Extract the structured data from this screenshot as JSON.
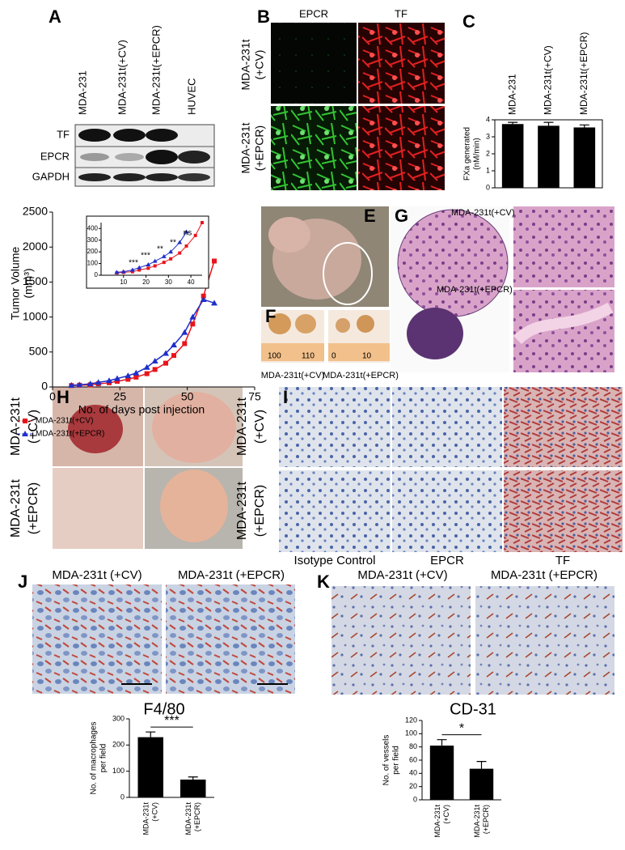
{
  "panels": {
    "A": {
      "label": "A",
      "lanes": [
        "MDA-231",
        "MDA-231t(+CV)",
        "MDA-231t(+EPCR)",
        "HUVEC"
      ],
      "rows": [
        "TF",
        "EPCR",
        "GAPDH"
      ]
    },
    "B": {
      "label": "B",
      "columns": [
        "EPCR",
        "TF"
      ],
      "rows": [
        [
          "MDA-231t",
          "(+CV)"
        ],
        [
          "MDA-231t",
          "(+EPCR)"
        ]
      ]
    },
    "E": {
      "label": "E"
    },
    "F": {
      "label": "F",
      "captions": [
        "MDA-231t(+CV)",
        "MDA-231t(+EPCR)"
      ],
      "ruler": [
        "100",
        "110",
        "0",
        "10"
      ]
    },
    "G": {
      "label": "G",
      "tags": [
        "MDA-231t(+CV)",
        "MDA-231t(+EPCR)"
      ]
    },
    "H": {
      "label": "H",
      "rows": [
        [
          "MDA-231t",
          "(+CV)"
        ],
        [
          "MDA-231t",
          "(+EPCR)"
        ]
      ]
    },
    "I": {
      "label": "I",
      "rows": [
        [
          "MDA-231t",
          "(+CV)"
        ],
        [
          "MDA-231t",
          "(+EPCR)"
        ]
      ],
      "columns": [
        "Isotype Control",
        "EPCR",
        "TF"
      ]
    },
    "J": {
      "label": "J",
      "titles": [
        "MDA-231t (+CV)",
        "MDA-231t (+EPCR)"
      ],
      "stain": "F4/80"
    },
    "K": {
      "label": "K",
      "titles": [
        "MDA-231t (+CV)",
        "MDA-231t (+EPCR)"
      ],
      "stain": "CD-31"
    }
  },
  "chart_data": [
    {
      "type": "bar",
      "label": "C",
      "categories": [
        "MDA-231",
        "MDA-231t(+CV)",
        "MDA-231t(+EPCR)"
      ],
      "values": [
        3.75,
        3.65,
        3.55
      ],
      "errors": [
        0.1,
        0.2,
        0.15
      ],
      "color": "#000000",
      "ylim": [
        0,
        4
      ],
      "yticks": [
        0,
        1,
        2,
        3,
        4
      ],
      "ylabel": [
        "FXa generated",
        "(nM/min)"
      ]
    },
    {
      "type": "line",
      "ylabel": [
        "Tumor Volume",
        "(mm³)"
      ],
      "xlabel": "No. of days post injection",
      "x": [
        7,
        10,
        14,
        17,
        21,
        24,
        28,
        31,
        35,
        38,
        42,
        45,
        49,
        52,
        56,
        60
      ],
      "series": [
        {
          "name": "MDA-231t(+CV)",
          "color": "#e8141b",
          "values": [
            20,
            25,
            30,
            45,
            60,
            80,
            110,
            140,
            190,
            250,
            340,
            450,
            620,
            900,
            1300,
            1800
          ]
        },
        {
          "name": "MDA-231t(+EPCR)",
          "color": "#1f2fc8",
          "values": [
            25,
            30,
            45,
            65,
            90,
            120,
            160,
            200,
            280,
            370,
            480,
            600,
            780,
            1000,
            1250,
            1200
          ]
        }
      ],
      "xlim": [
        0,
        75
      ],
      "xticks": [
        0,
        25,
        50,
        75
      ],
      "ylim": [
        0,
        2500
      ],
      "yticks": [
        0,
        500,
        1000,
        1500,
        2000,
        2500
      ],
      "inset": {
        "xlim": [
          0,
          45
        ],
        "xticks": [
          10,
          20,
          30,
          40
        ],
        "ylim": [
          0,
          450
        ],
        "yticks": [
          0,
          100,
          200,
          300,
          400
        ],
        "annotations": [
          "***",
          "***",
          "**",
          "**",
          "ns"
        ]
      }
    },
    {
      "type": "bar",
      "categories": [
        [
          "MDA-231t",
          "(+CV)"
        ],
        [
          "MDA-231t",
          "(+EPCR)"
        ]
      ],
      "values": [
        230,
        68
      ],
      "errors": [
        20,
        10
      ],
      "color": "#000000",
      "ylim": [
        0,
        300
      ],
      "yticks": [
        0,
        100,
        200,
        300
      ],
      "ylabel": [
        "No. of macrophages",
        "per field"
      ],
      "significance": "***"
    },
    {
      "type": "bar",
      "categories": [
        [
          "MDA-231t",
          "(+CV)"
        ],
        [
          "MDA-231t",
          "(+EPCR)"
        ]
      ],
      "values": [
        82,
        47
      ],
      "errors": [
        9,
        11
      ],
      "color": "#000000",
      "ylim": [
        0,
        120
      ],
      "yticks": [
        0,
        20,
        40,
        60,
        80,
        100,
        120
      ],
      "ylabel": [
        "No. of vessels",
        "per field"
      ],
      "significance": "*"
    }
  ]
}
